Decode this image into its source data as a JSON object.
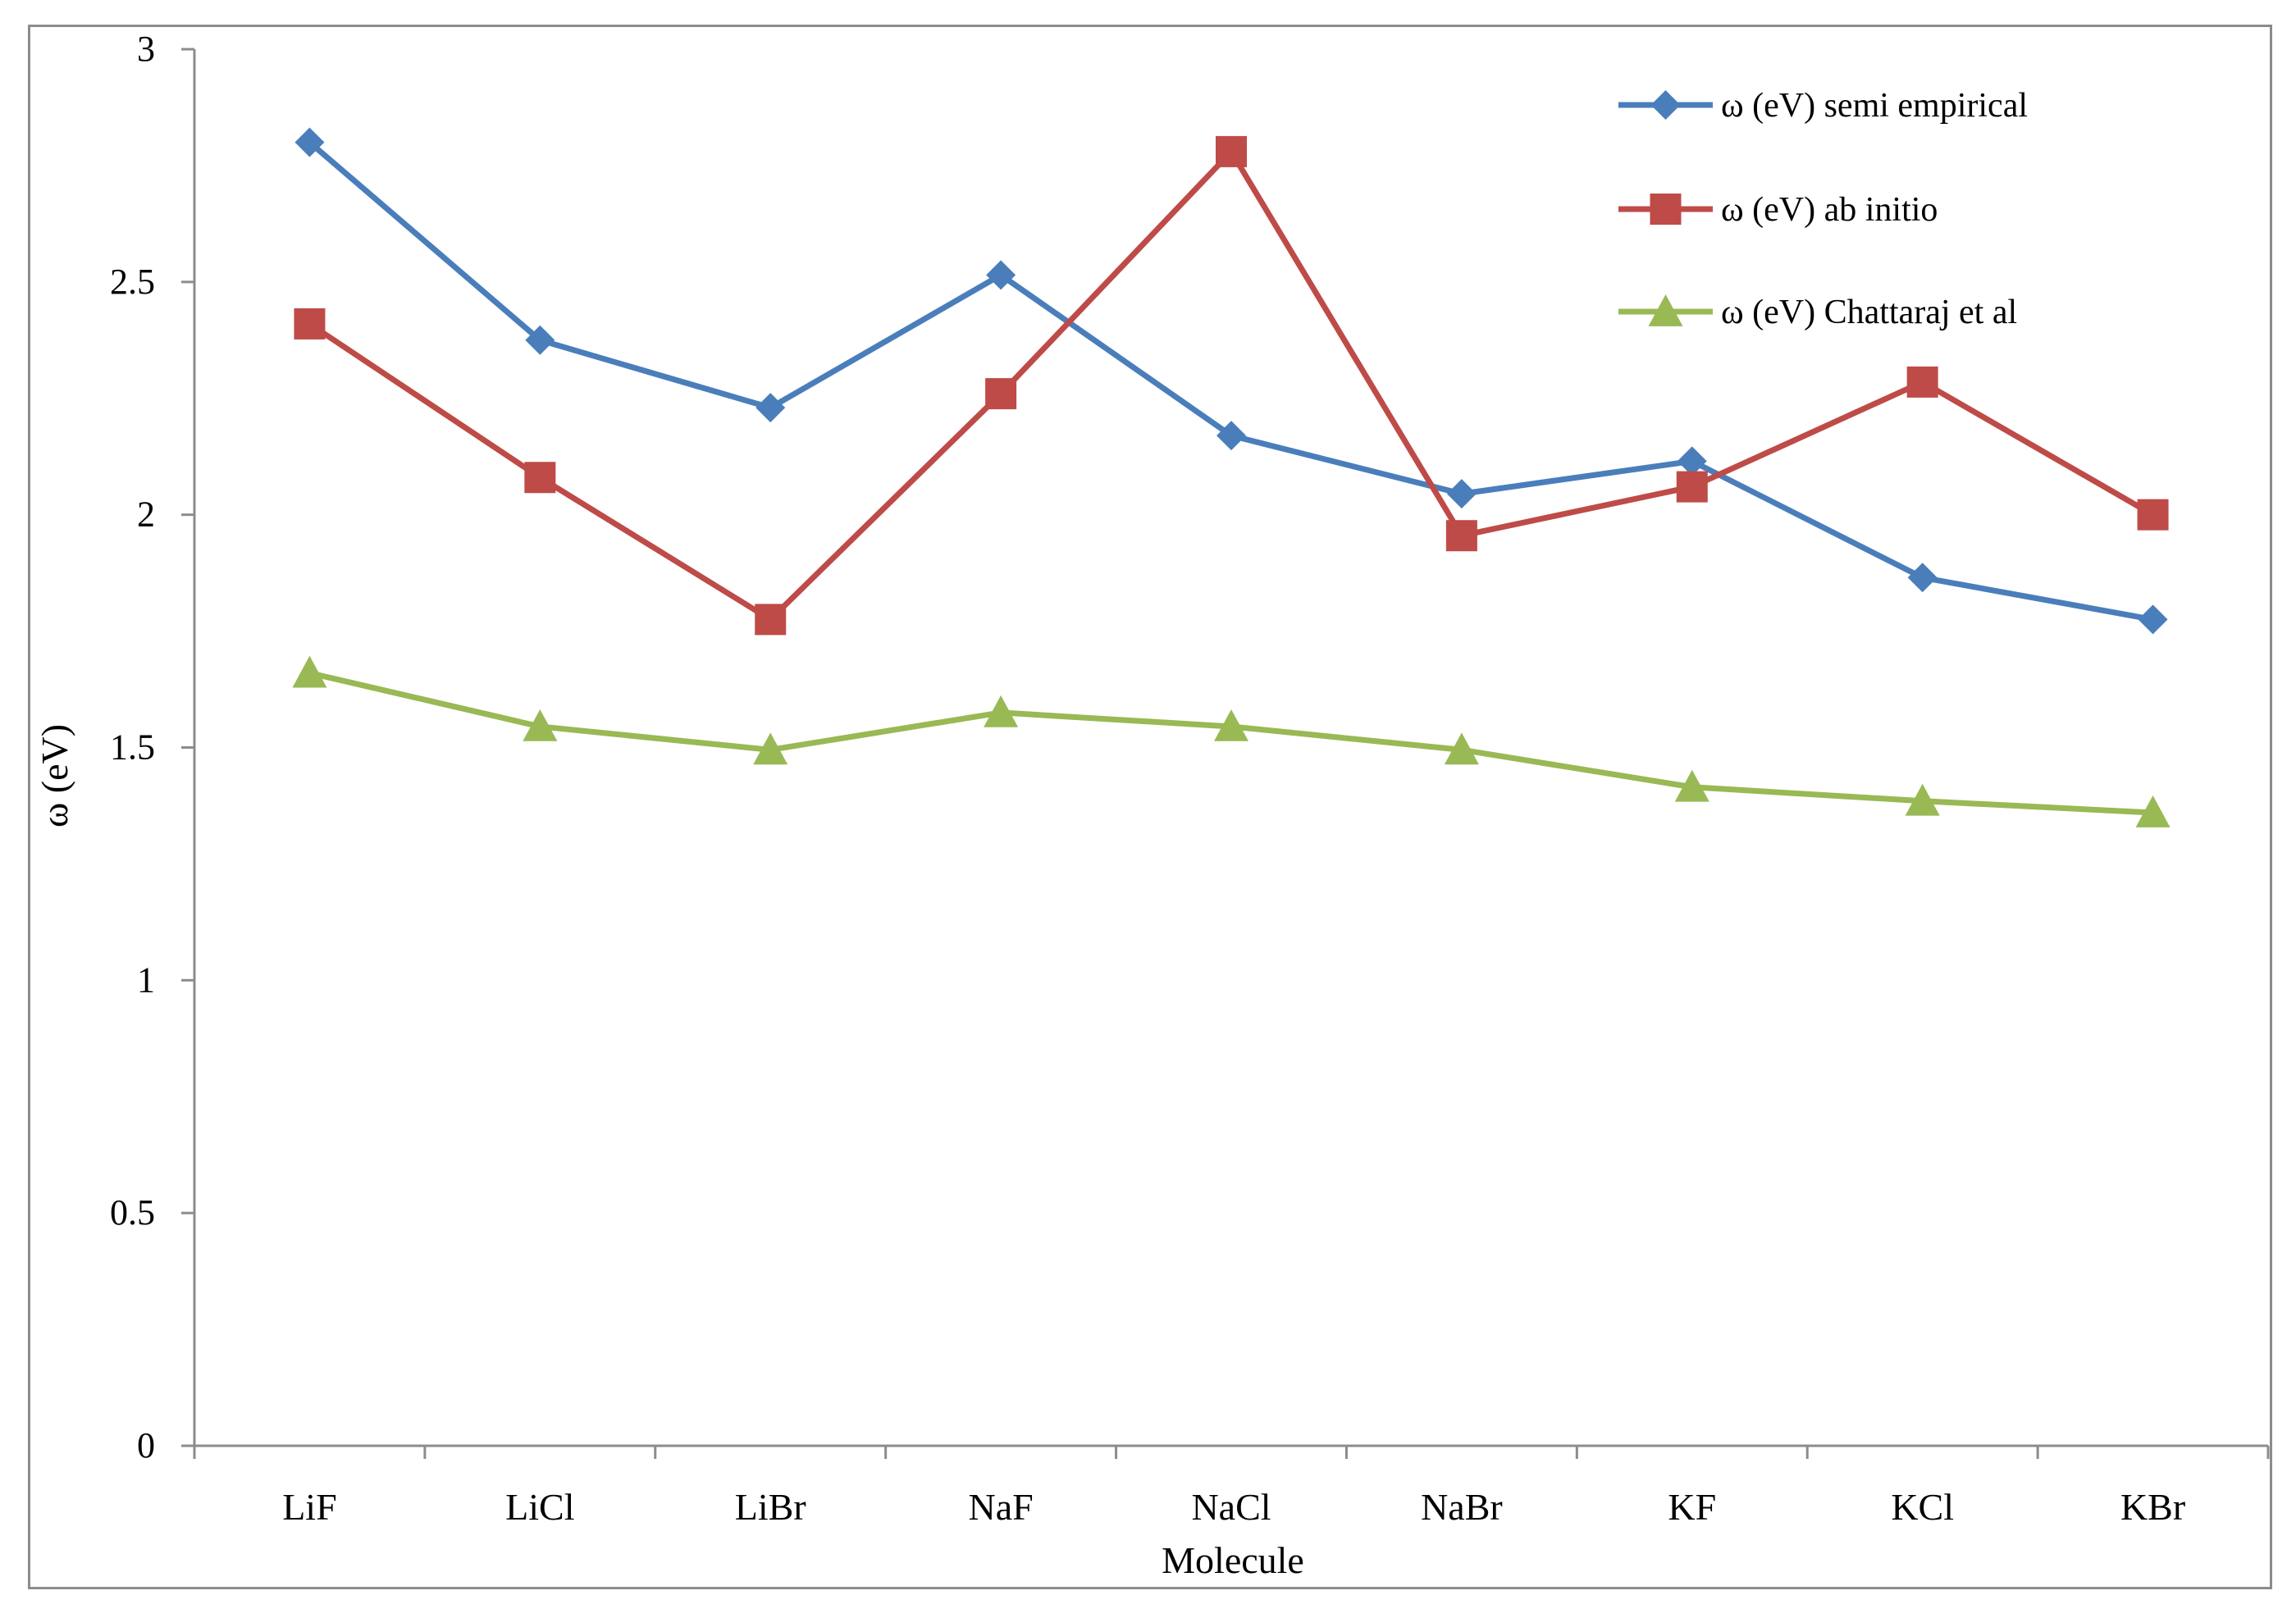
{
  "chart_data": {
    "type": "line",
    "title": "",
    "xlabel": "Molecule",
    "ylabel": "ω (eV)",
    "ylim": [
      0,
      3
    ],
    "yticks": [
      "0",
      "0.5",
      "1",
      "1.5",
      "2",
      "2.5",
      "3"
    ],
    "grid": false,
    "legend_position": "top-right",
    "categories": [
      "LiF",
      "LiCl",
      "LiBr",
      "NaF",
      "NaCl",
      "NaBr",
      "KF",
      "KCl",
      "KBr"
    ],
    "series": [
      {
        "name": "ω (eV) semi empirical",
        "color": "#4a7ebb",
        "marker": "diamond",
        "values": [
          2.8,
          2.375,
          2.23,
          2.515,
          2.17,
          2.045,
          2.115,
          1.865,
          1.775
        ]
      },
      {
        "name": "ω (eV) ab initio",
        "color": "#be4b48",
        "marker": "square",
        "values": [
          2.41,
          2.08,
          1.775,
          2.26,
          2.78,
          1.955,
          2.06,
          2.285,
          2.0
        ]
      },
      {
        "name": "ω (eV) Chattaraj et al",
        "color": "#98b954",
        "marker": "triangle",
        "values": [
          1.66,
          1.545,
          1.495,
          1.575,
          1.545,
          1.495,
          1.415,
          1.385,
          1.36
        ]
      }
    ]
  }
}
